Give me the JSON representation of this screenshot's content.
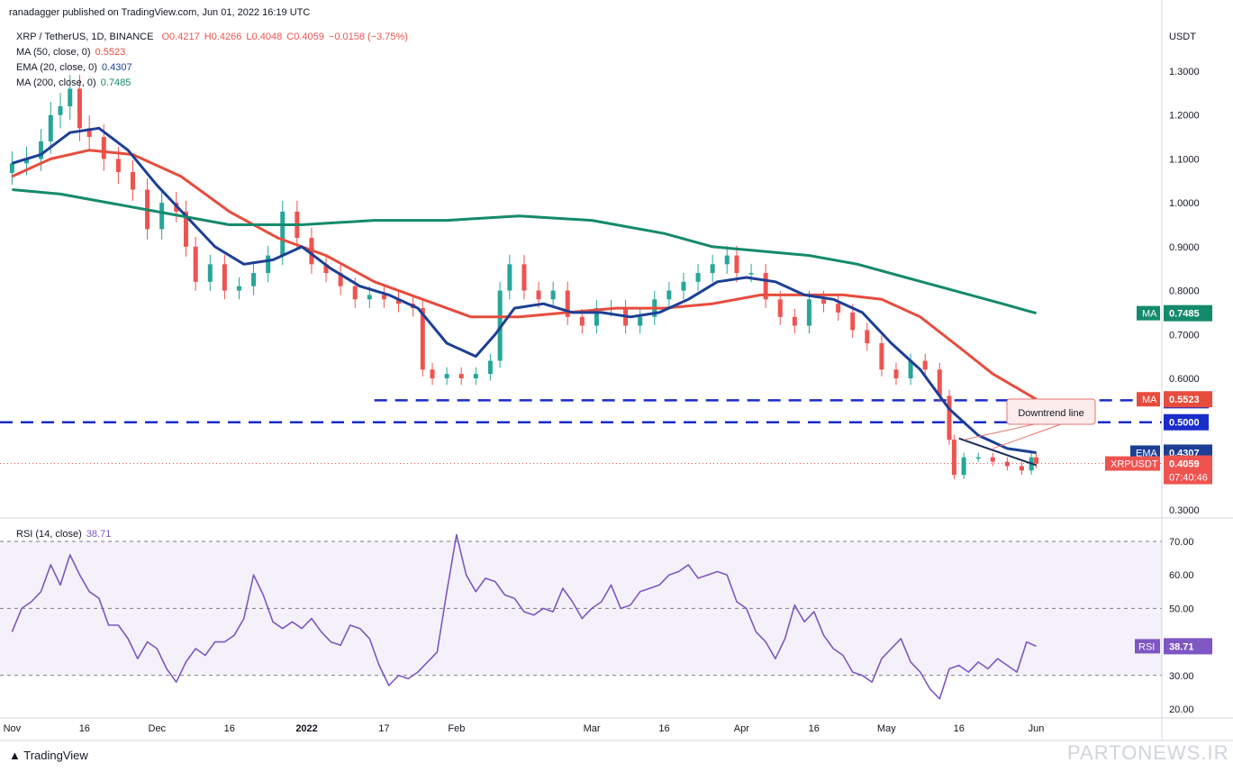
{
  "header": {
    "publisher": "ranadagger published on TradingView.com, Jun 01, 2022 16:19 UTC",
    "currency": "USDT"
  },
  "legend": {
    "symbol": "XRP / TetherUS, 1D, BINANCE",
    "ohlc": {
      "o": "O0.4217",
      "h": "H0.4266",
      "l": "L0.4048",
      "c": "C0.4059",
      "chg": "−0.0158 (−3.75%)"
    },
    "ma50": {
      "label": "MA (50, close, 0)",
      "value": "0.5523",
      "color": "#e84c3d"
    },
    "ema20": {
      "label": "EMA (20, close, 0)",
      "value": "0.4307",
      "color": "#1c3f95"
    },
    "ma200": {
      "label": "MA (200, close, 0)",
      "value": "0.7485",
      "color": "#148a6c"
    },
    "rsi": {
      "label": "RSI (14, close)",
      "value": "38.71",
      "color": "#7e57c2"
    }
  },
  "footer": {
    "brand": "TradingView",
    "watermark": "PARTONEWS.IR"
  },
  "colors": {
    "up": "#26a69a",
    "down": "#ef5350",
    "ma50": "#e84c3d",
    "ema20": "#1c3f95",
    "ma200": "#148a6c",
    "rsi": "#7e57c2",
    "level": "#1a2cc9"
  },
  "chart_data": [
    {
      "type": "candlestick",
      "title": "XRP / TetherUS, 1D, BINANCE",
      "ylabel": "USDT",
      "ylim": [
        0.28,
        1.35
      ],
      "y_ticks": [
        "1.3000",
        "1.2000",
        "1.1000",
        "1.0000",
        "0.9000",
        "0.8000",
        "0.7000",
        "0.6000",
        "0.3000"
      ],
      "x_ticks": [
        "Nov",
        "16",
        "Dec",
        "16",
        "2022",
        "17",
        "Feb",
        "Mar",
        "16",
        "Apr",
        "16",
        "May",
        "16",
        "Jun"
      ],
      "x_tick_days": [
        0,
        15,
        30,
        45,
        61,
        77,
        92,
        120,
        135,
        151,
        166,
        181,
        196,
        212
      ],
      "x_range_days": [
        -1,
        238
      ],
      "ohlc_close_series": [
        {
          "day": 0,
          "close": 1.09
        },
        {
          "day": 3,
          "close": 1.1
        },
        {
          "day": 6,
          "close": 1.14
        },
        {
          "day": 8,
          "close": 1.2
        },
        {
          "day": 10,
          "close": 1.22
        },
        {
          "day": 12,
          "close": 1.26
        },
        {
          "day": 14,
          "close": 1.17
        },
        {
          "day": 16,
          "close": 1.15
        },
        {
          "day": 19,
          "close": 1.1
        },
        {
          "day": 22,
          "close": 1.07
        },
        {
          "day": 25,
          "close": 1.03
        },
        {
          "day": 28,
          "close": 0.94
        },
        {
          "day": 31,
          "close": 1.0
        },
        {
          "day": 34,
          "close": 0.98
        },
        {
          "day": 36,
          "close": 0.9
        },
        {
          "day": 38,
          "close": 0.82
        },
        {
          "day": 41,
          "close": 0.86
        },
        {
          "day": 44,
          "close": 0.8
        },
        {
          "day": 47,
          "close": 0.81
        },
        {
          "day": 50,
          "close": 0.84
        },
        {
          "day": 53,
          "close": 0.88
        },
        {
          "day": 56,
          "close": 0.98
        },
        {
          "day": 59,
          "close": 0.92
        },
        {
          "day": 62,
          "close": 0.86
        },
        {
          "day": 65,
          "close": 0.84
        },
        {
          "day": 68,
          "close": 0.81
        },
        {
          "day": 71,
          "close": 0.78
        },
        {
          "day": 74,
          "close": 0.79
        },
        {
          "day": 77,
          "close": 0.78
        },
        {
          "day": 80,
          "close": 0.77
        },
        {
          "day": 83,
          "close": 0.76
        },
        {
          "day": 85,
          "close": 0.62
        },
        {
          "day": 87,
          "close": 0.6
        },
        {
          "day": 90,
          "close": 0.61
        },
        {
          "day": 93,
          "close": 0.6
        },
        {
          "day": 96,
          "close": 0.61
        },
        {
          "day": 99,
          "close": 0.64
        },
        {
          "day": 101,
          "close": 0.8
        },
        {
          "day": 103,
          "close": 0.86
        },
        {
          "day": 106,
          "close": 0.8
        },
        {
          "day": 109,
          "close": 0.78
        },
        {
          "day": 112,
          "close": 0.8
        },
        {
          "day": 115,
          "close": 0.74
        },
        {
          "day": 118,
          "close": 0.72
        },
        {
          "day": 121,
          "close": 0.76
        },
        {
          "day": 124,
          "close": 0.76
        },
        {
          "day": 127,
          "close": 0.72
        },
        {
          "day": 130,
          "close": 0.74
        },
        {
          "day": 133,
          "close": 0.78
        },
        {
          "day": 136,
          "close": 0.8
        },
        {
          "day": 139,
          "close": 0.82
        },
        {
          "day": 142,
          "close": 0.84
        },
        {
          "day": 145,
          "close": 0.86
        },
        {
          "day": 148,
          "close": 0.88
        },
        {
          "day": 150,
          "close": 0.84
        },
        {
          "day": 153,
          "close": 0.84
        },
        {
          "day": 156,
          "close": 0.78
        },
        {
          "day": 159,
          "close": 0.74
        },
        {
          "day": 162,
          "close": 0.72
        },
        {
          "day": 165,
          "close": 0.78
        },
        {
          "day": 168,
          "close": 0.77
        },
        {
          "day": 171,
          "close": 0.75
        },
        {
          "day": 174,
          "close": 0.71
        },
        {
          "day": 177,
          "close": 0.68
        },
        {
          "day": 180,
          "close": 0.62
        },
        {
          "day": 183,
          "close": 0.6
        },
        {
          "day": 186,
          "close": 0.64
        },
        {
          "day": 189,
          "close": 0.62
        },
        {
          "day": 192,
          "close": 0.56
        },
        {
          "day": 194,
          "close": 0.46
        },
        {
          "day": 195,
          "close": 0.38
        },
        {
          "day": 197,
          "close": 0.42
        },
        {
          "day": 200,
          "close": 0.42
        },
        {
          "day": 203,
          "close": 0.41
        },
        {
          "day": 206,
          "close": 0.4
        },
        {
          "day": 209,
          "close": 0.39
        },
        {
          "day": 211,
          "close": 0.42
        },
        {
          "day": 212,
          "close": 0.4059
        }
      ],
      "series": [
        {
          "name": "MA (50, close, 0)",
          "x": [
            0,
            8,
            16,
            25,
            35,
            45,
            55,
            65,
            75,
            85,
            95,
            105,
            115,
            125,
            135,
            145,
            155,
            165,
            172,
            180,
            188,
            195,
            203,
            212
          ],
          "values": [
            1.06,
            1.1,
            1.12,
            1.11,
            1.06,
            0.98,
            0.92,
            0.88,
            0.82,
            0.78,
            0.74,
            0.74,
            0.75,
            0.76,
            0.76,
            0.77,
            0.79,
            0.79,
            0.79,
            0.78,
            0.74,
            0.68,
            0.61,
            0.5523
          ]
        },
        {
          "name": "EMA (20, close, 0)",
          "x": [
            0,
            6,
            12,
            18,
            24,
            30,
            36,
            42,
            48,
            54,
            60,
            66,
            72,
            78,
            84,
            90,
            96,
            100,
            104,
            110,
            116,
            122,
            128,
            134,
            140,
            146,
            152,
            158,
            164,
            170,
            176,
            182,
            188,
            194,
            200,
            206,
            212
          ],
          "values": [
            1.09,
            1.11,
            1.16,
            1.17,
            1.12,
            1.04,
            0.97,
            0.9,
            0.86,
            0.87,
            0.9,
            0.85,
            0.81,
            0.79,
            0.76,
            0.68,
            0.65,
            0.7,
            0.76,
            0.77,
            0.75,
            0.75,
            0.74,
            0.75,
            0.78,
            0.82,
            0.83,
            0.82,
            0.79,
            0.78,
            0.75,
            0.68,
            0.62,
            0.53,
            0.47,
            0.44,
            0.4307
          ]
        },
        {
          "name": "MA (200, close, 0)",
          "x": [
            0,
            10,
            20,
            30,
            45,
            60,
            75,
            90,
            105,
            120,
            135,
            145,
            155,
            165,
            175,
            185,
            195,
            205,
            212
          ],
          "values": [
            1.03,
            1.02,
            1.0,
            0.98,
            0.95,
            0.95,
            0.96,
            0.96,
            0.97,
            0.96,
            0.93,
            0.9,
            0.89,
            0.88,
            0.86,
            0.83,
            0.8,
            0.77,
            0.7485
          ]
        }
      ],
      "levels": [
        {
          "label": "0.5500",
          "y": 0.55
        },
        {
          "label": "0.5000",
          "y": 0.5
        }
      ],
      "annotations": [
        {
          "text": "Downtrend line"
        }
      ],
      "price_labels": [
        {
          "tag": "MA",
          "value": "0.7485",
          "y": 0.7485,
          "color": "#148a6c"
        },
        {
          "tag": "MA",
          "value": "0.5523",
          "y": 0.5523,
          "color": "#e84c3d"
        },
        {
          "tag": "EMA",
          "value": "0.4307",
          "y": 0.4307,
          "color": "#1c3f95"
        },
        {
          "tag": "XRPUSDT",
          "value": "0.4059",
          "sub": "07:40:46",
          "y": 0.4059,
          "color": "#ef5350"
        }
      ]
    },
    {
      "type": "line",
      "title": "RSI (14, close)",
      "ylim": [
        17,
        75
      ],
      "y_ticks": [
        "70.00",
        "60.00",
        "50.00",
        "40.00",
        "30.00",
        "20.00"
      ],
      "bands": [
        30,
        50,
        70
      ],
      "series": [
        {
          "name": "RSI (14, close)",
          "x": [
            0,
            2,
            4,
            6,
            8,
            10,
            12,
            14,
            16,
            18,
            20,
            22,
            24,
            26,
            28,
            30,
            32,
            34,
            36,
            38,
            40,
            42,
            44,
            46,
            48,
            50,
            52,
            54,
            56,
            58,
            60,
            62,
            64,
            66,
            68,
            70,
            72,
            74,
            76,
            78,
            80,
            82,
            84,
            86,
            88,
            90,
            92,
            94,
            96,
            98,
            100,
            102,
            104,
            106,
            108,
            110,
            112,
            114,
            116,
            118,
            120,
            122,
            124,
            126,
            128,
            130,
            132,
            134,
            136,
            138,
            140,
            142,
            144,
            146,
            148,
            150,
            152,
            154,
            156,
            158,
            160,
            162,
            164,
            166,
            168,
            170,
            172,
            174,
            176,
            178,
            180,
            182,
            184,
            186,
            188,
            190,
            192,
            194,
            196,
            198,
            200,
            202,
            204,
            206,
            208,
            210,
            212
          ],
          "values": [
            43,
            50,
            52,
            55,
            63,
            57,
            66,
            60,
            55,
            53,
            45,
            45,
            41,
            35,
            40,
            38,
            32,
            28,
            34,
            38,
            36,
            40,
            40,
            42,
            47,
            60,
            54,
            46,
            44,
            46,
            44,
            47,
            43,
            40,
            39,
            45,
            44,
            41,
            33,
            27,
            30,
            29,
            31,
            34,
            37,
            55,
            72,
            60,
            55,
            59,
            58,
            54,
            53,
            49,
            48,
            50,
            49,
            56,
            52,
            47,
            50,
            52,
            57,
            50,
            51,
            55,
            56,
            57,
            60,
            61,
            63,
            59,
            60,
            61,
            60,
            52,
            50,
            43,
            40,
            35,
            41,
            51,
            46,
            49,
            42,
            38,
            36,
            31,
            30,
            28,
            35,
            38,
            41,
            34,
            31,
            26,
            23,
            32,
            33,
            31,
            34,
            32,
            35,
            33,
            31,
            40,
            38.71
          ]
        }
      ]
    }
  ]
}
